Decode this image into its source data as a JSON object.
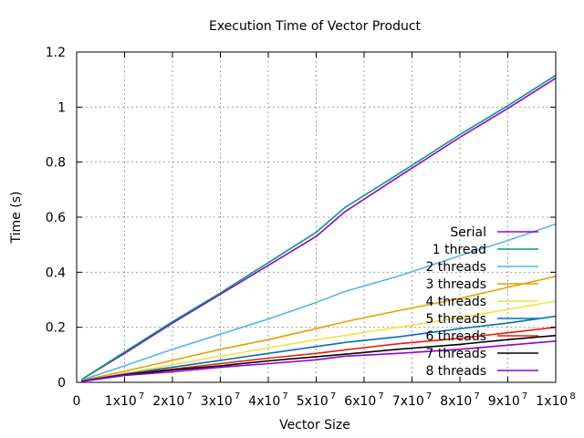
{
  "chart_data": {
    "type": "line",
    "title": "Execution Time of Vector Product",
    "xlabel": "Vector Size",
    "ylabel": "Time (s)",
    "xlim": [
      0,
      100000000
    ],
    "ylim": [
      0,
      1.2
    ],
    "grid": true,
    "legend_position": "lower-right",
    "x_ticks": [
      {
        "value": 0,
        "label": "0",
        "exp": ""
      },
      {
        "value": 10000000,
        "label": "1x10",
        "exp": "7"
      },
      {
        "value": 20000000,
        "label": "2x10",
        "exp": "7"
      },
      {
        "value": 30000000,
        "label": "3x10",
        "exp": "7"
      },
      {
        "value": 40000000,
        "label": "4x10",
        "exp": "7"
      },
      {
        "value": 50000000,
        "label": "5x10",
        "exp": "7"
      },
      {
        "value": 60000000,
        "label": "6x10",
        "exp": "7"
      },
      {
        "value": 70000000,
        "label": "7x10",
        "exp": "7"
      },
      {
        "value": 80000000,
        "label": "8x10",
        "exp": "7"
      },
      {
        "value": 90000000,
        "label": "9x10",
        "exp": "7"
      },
      {
        "value": 100000000,
        "label": "1x10",
        "exp": "8"
      }
    ],
    "y_ticks": [
      {
        "value": 0,
        "label": "0"
      },
      {
        "value": 0.2,
        "label": "0.2"
      },
      {
        "value": 0.4,
        "label": "0.4"
      },
      {
        "value": 0.6,
        "label": "0.6"
      },
      {
        "value": 0.8,
        "label": "0.8"
      },
      {
        "value": 1.0,
        "label": "1"
      },
      {
        "value": 1.2,
        "label": "1.2"
      }
    ],
    "x": [
      1000000,
      10000000,
      20000000,
      30000000,
      40000000,
      50000000,
      56000000,
      67000000,
      80000000,
      90000000,
      100000000
    ],
    "series": [
      {
        "name": "Serial",
        "color": "#9400d3",
        "values": [
          0.01,
          0.105,
          0.215,
          0.32,
          0.425,
          0.53,
          0.62,
          0.745,
          0.89,
          0.995,
          1.105
        ]
      },
      {
        "name": "1 thread",
        "color": "#009e73",
        "values": [
          0.01,
          0.11,
          0.22,
          0.325,
          0.435,
          0.545,
          0.635,
          0.755,
          0.9,
          1.005,
          1.115
        ]
      },
      {
        "name": "2 threads",
        "color": "#56b4e9",
        "values": [
          0.008,
          0.06,
          0.12,
          0.175,
          0.23,
          0.29,
          0.33,
          0.385,
          0.46,
          0.515,
          0.575
        ]
      },
      {
        "name": "3 threads",
        "color": "#e69f00",
        "values": [
          0.006,
          0.04,
          0.08,
          0.12,
          0.155,
          0.195,
          0.22,
          0.26,
          0.305,
          0.345,
          0.385
        ]
      },
      {
        "name": "4 threads",
        "color": "#f0e442",
        "values": [
          0.005,
          0.032,
          0.064,
          0.095,
          0.125,
          0.155,
          0.17,
          0.2,
          0.235,
          0.265,
          0.295
        ]
      },
      {
        "name": "5 threads",
        "color": "#0072b2",
        "values": [
          0.005,
          0.03,
          0.055,
          0.08,
          0.105,
          0.13,
          0.145,
          0.165,
          0.195,
          0.215,
          0.24
        ]
      },
      {
        "name": "6 threads",
        "color": "#e51e10",
        "values": [
          0.004,
          0.028,
          0.048,
          0.068,
          0.088,
          0.105,
          0.118,
          0.14,
          0.16,
          0.18,
          0.2
        ]
      },
      {
        "name": "7 threads",
        "color": "#000000",
        "values": [
          0.004,
          0.027,
          0.045,
          0.06,
          0.078,
          0.093,
          0.102,
          0.12,
          0.138,
          0.155,
          0.17
        ]
      },
      {
        "name": "8 threads",
        "color": "#9400d3",
        "values": [
          0.003,
          0.025,
          0.038,
          0.055,
          0.068,
          0.082,
          0.095,
          0.105,
          0.12,
          0.135,
          0.15
        ]
      }
    ]
  }
}
